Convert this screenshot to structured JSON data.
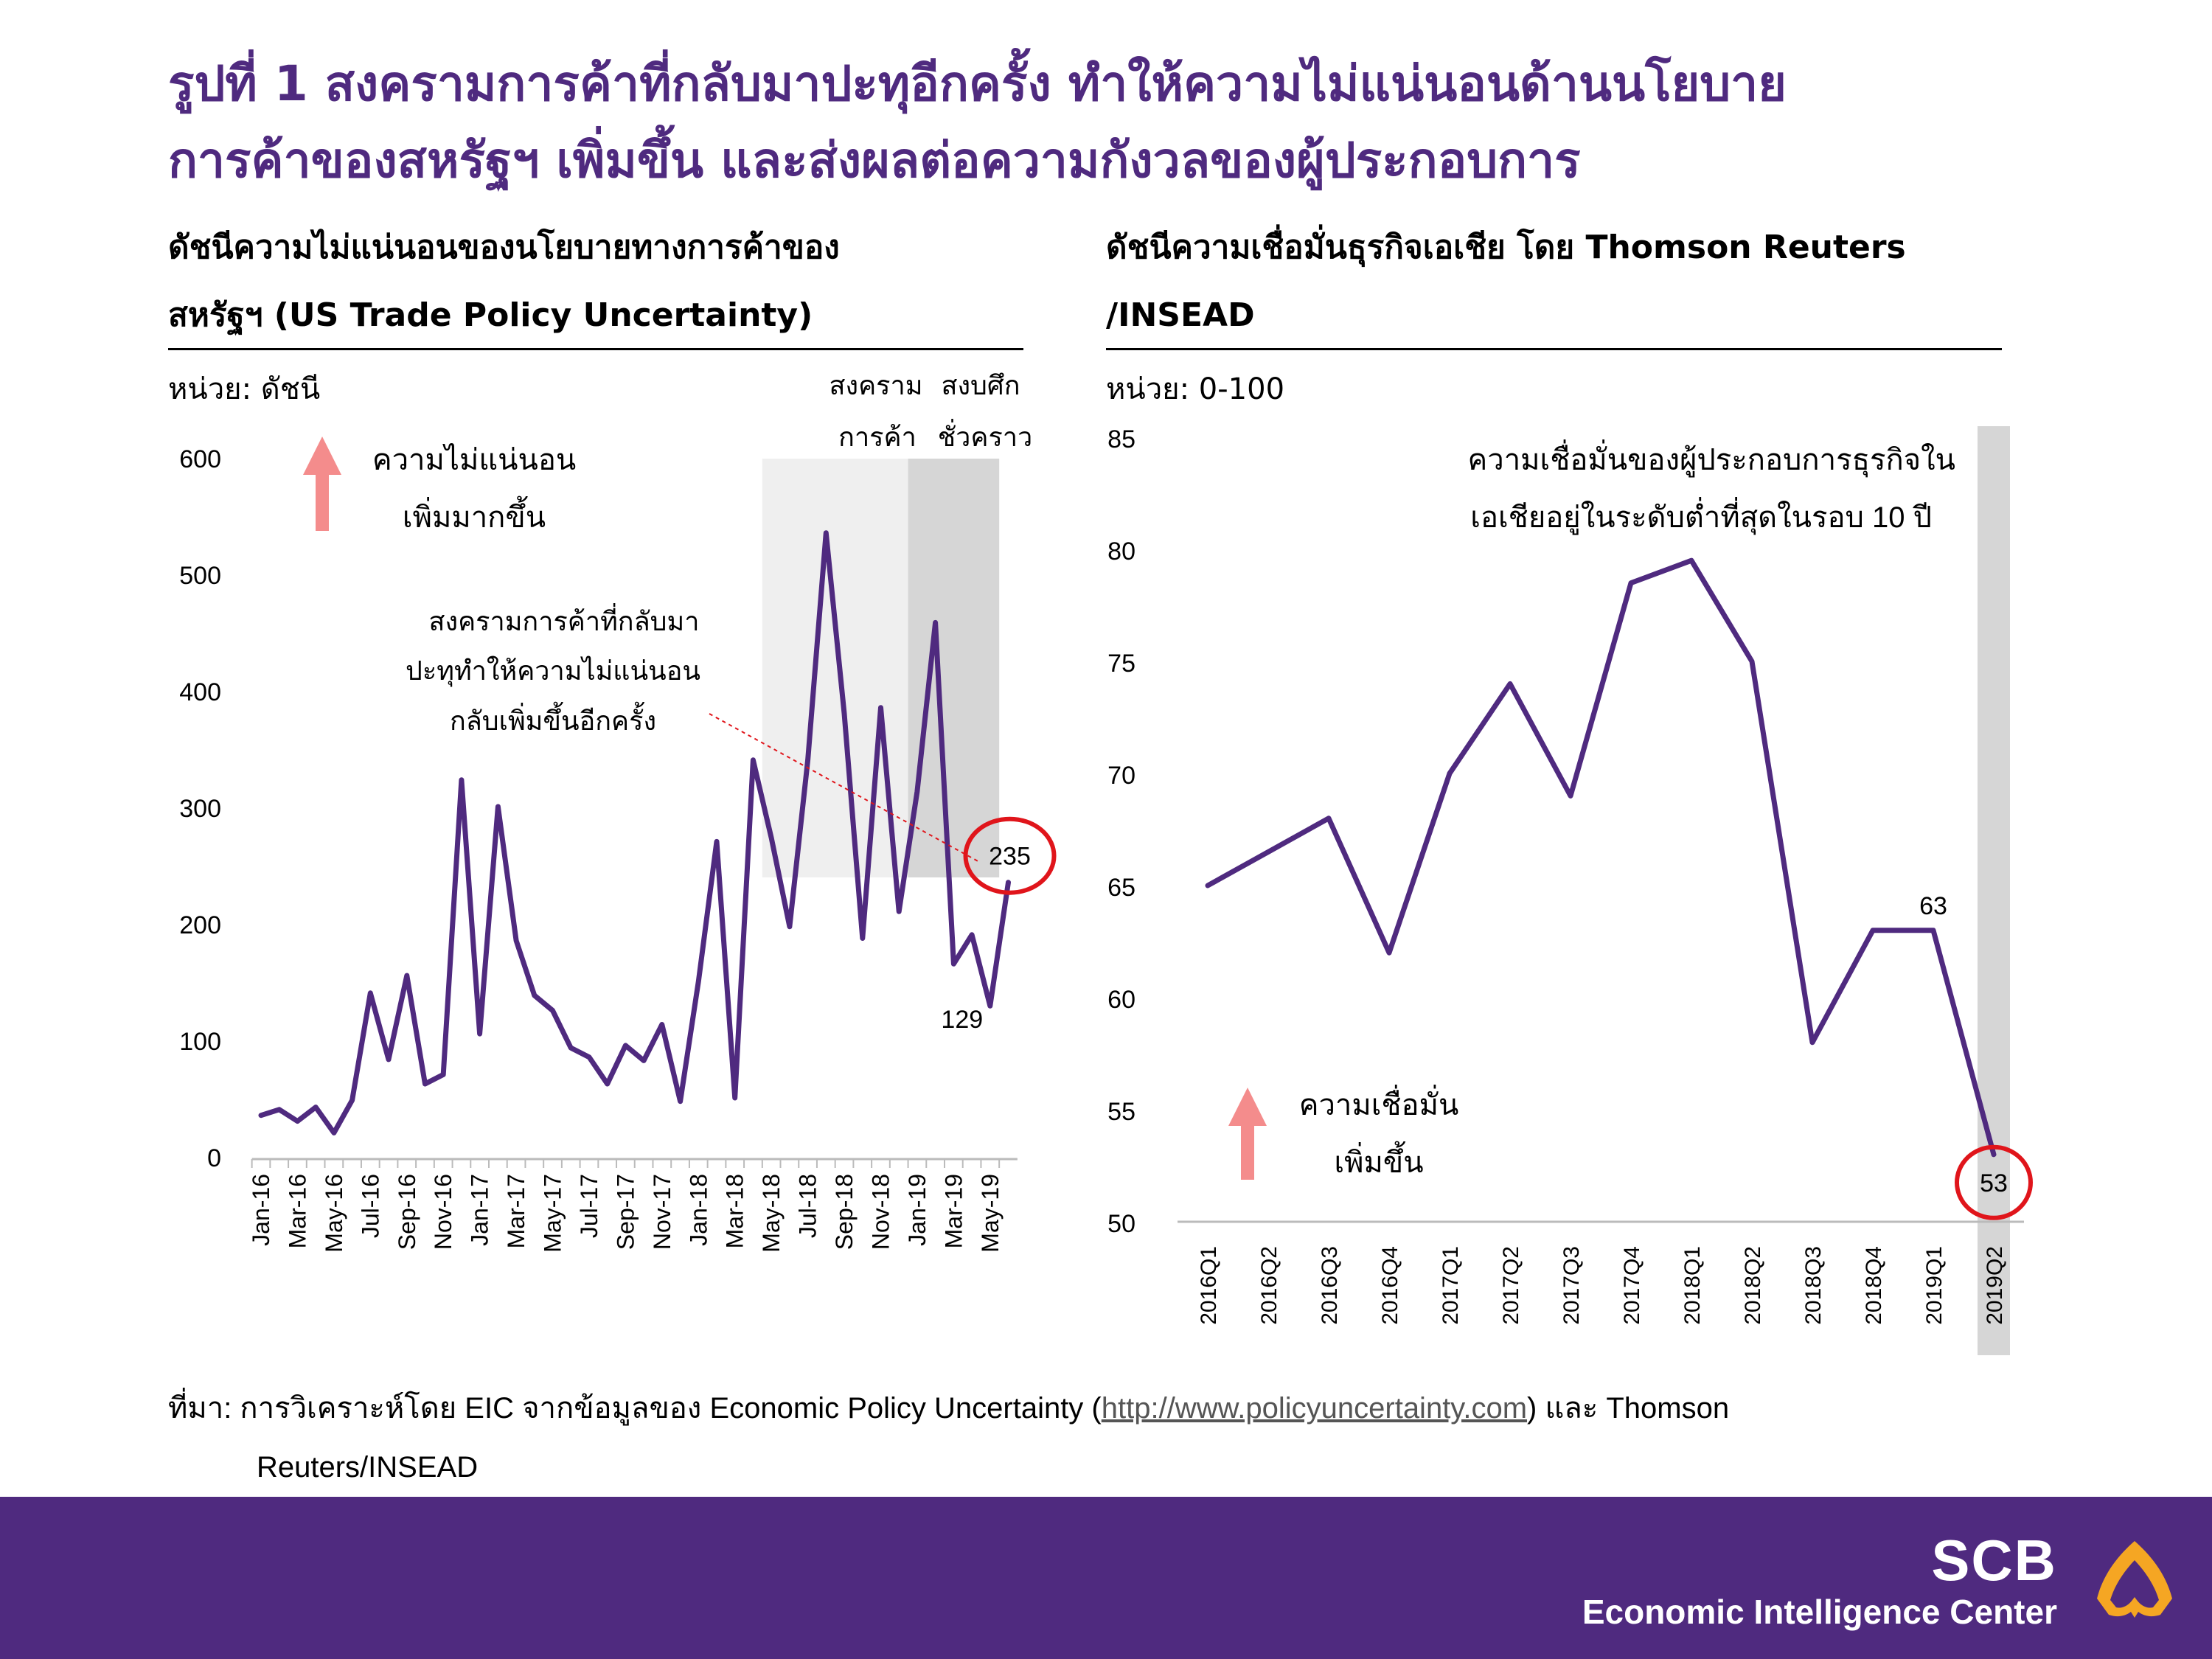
{
  "figure": {
    "title_line1": "รูปที่ 1 สงครามการค้าที่กลับมาปะทุอีกครั้ง ทำให้ความไม่แน่นอนด้านนโยบาย",
    "title_line2": "การค้าของสหรัฐฯ เพิ่มขึ้น และส่งผลต่อความกังวลของผู้ประกอบการ"
  },
  "left": {
    "subtitle_line1": "ดัชนีความไม่แน่นอนของนโยบายทางการค้าของ",
    "subtitle_line2": "สหรัฐฯ (US Trade Policy Uncertainty)",
    "unit": "หน่วย: ดัชนี"
  },
  "right": {
    "subtitle_line1": "ดัชนีความเชื่อมั่นธุรกิจเอเชีย โดย Thomson Reuters",
    "subtitle_line2": "/INSEAD",
    "unit": "หน่วย: 0-100"
  },
  "colors": {
    "line": "#4f2a7f",
    "title": "#4f2a7f",
    "highlight": "#e0151b",
    "arrow": "#f48c8c",
    "shade_light": "#efefef",
    "shade_dark": "#d6d6d6",
    "footer": "#4f2a7f",
    "logo": "#f5a623"
  },
  "chart_data": [
    {
      "type": "line",
      "title": "ดัชนีความไม่แน่นอนของนโยบายทางการค้าของสหรัฐฯ (US Trade Policy Uncertainty)",
      "ylabel": "หน่วย: ดัชนี",
      "ylim": [
        0,
        600
      ],
      "yticks": [
        "600",
        "500",
        "400",
        "300",
        "200",
        "100",
        "0"
      ],
      "xtick_labels": [
        "Jan-16",
        "Mar-16",
        "May-16",
        "Jul-16",
        "Sep-16",
        "Nov-16",
        "Jan-17",
        "Mar-17",
        "May-17",
        "Jul-17",
        "Sep-17",
        "Nov-17",
        "Jan-18",
        "Mar-18",
        "May-18",
        "Jul-18",
        "Sep-18",
        "Nov-18",
        "Jan-19",
        "Mar-19",
        "May-19"
      ],
      "x": [
        "Jan-16",
        "Feb-16",
        "Mar-16",
        "Apr-16",
        "May-16",
        "Jun-16",
        "Jul-16",
        "Aug-16",
        "Sep-16",
        "Oct-16",
        "Nov-16",
        "Dec-16",
        "Jan-17",
        "Feb-17",
        "Mar-17",
        "Apr-17",
        "May-17",
        "Jun-17",
        "Jul-17",
        "Aug-17",
        "Sep-17",
        "Oct-17",
        "Nov-17",
        "Dec-17",
        "Jan-18",
        "Feb-18",
        "Mar-18",
        "Apr-18",
        "May-18",
        "Jun-18",
        "Jul-18",
        "Aug-18",
        "Sep-18",
        "Oct-18",
        "Nov-18",
        "Dec-18",
        "Jan-19",
        "Feb-19",
        "Mar-19",
        "Apr-19",
        "May-19",
        "Jun-19"
      ],
      "values": [
        35,
        40,
        30,
        42,
        20,
        48,
        140,
        83,
        155,
        62,
        70,
        323,
        105,
        300,
        185,
        138,
        125,
        93,
        85,
        62,
        95,
        82,
        113,
        47,
        150,
        270,
        50,
        340,
        273,
        197,
        340,
        535,
        380,
        187,
        385,
        210,
        313,
        458,
        165,
        190,
        129,
        235
      ],
      "value_labels": [
        {
          "index": 40,
          "text": "129"
        },
        {
          "index": 41,
          "text": "235",
          "highlighted": true
        }
      ],
      "shaded_regions": [
        {
          "from": "May-18",
          "to": "Dec-18",
          "label_line1": "สงคราม",
          "label_line2": "การค้า",
          "tone": "light"
        },
        {
          "from": "Jan-19",
          "to": "May-19",
          "label_line1": "สงบศึก",
          "label_line2": "ชั่วคราว",
          "tone": "dark"
        }
      ],
      "annotations": {
        "arrow_line1": "ความไม่แน่นอน",
        "arrow_line2": "เพิ่มมากขึ้น",
        "note_line1": "สงครามการค้าที่กลับมา",
        "note_line2": "ปะทุทำให้ความไม่แน่นอน",
        "note_line3": "กลับเพิ่มขึ้นอีกครั้ง"
      }
    },
    {
      "type": "line",
      "title": "ดัชนีความเชื่อมั่นธุรกิจเอเชีย โดย Thomson Reuters/INSEAD",
      "ylabel": "หน่วย: 0-100",
      "ylim": [
        50,
        85
      ],
      "yticks": [
        "85",
        "80",
        "75",
        "70",
        "65",
        "60",
        "55",
        "50"
      ],
      "categories": [
        "2016Q1",
        "2016Q2",
        "2016Q3",
        "2016Q4",
        "2017Q1",
        "2017Q2",
        "2017Q3",
        "2017Q4",
        "2018Q1",
        "2018Q2",
        "2018Q3",
        "2018Q4",
        "2019Q1",
        "2019Q2"
      ],
      "values": [
        65,
        66.5,
        68,
        62,
        70,
        74,
        69,
        78.5,
        79.5,
        75,
        58,
        63,
        63,
        53
      ],
      "value_labels": [
        {
          "index": 12,
          "text": "63"
        },
        {
          "index": 13,
          "text": "53",
          "highlighted": true
        }
      ],
      "shaded_regions": [
        {
          "from": "2019Q2",
          "to": "2019Q2",
          "tone": "dark"
        }
      ],
      "annotations": {
        "note_line1": "ความเชื่อมั่นของผู้ประกอบการธุรกิจใน",
        "note_line2": "เอเชียอยู่ในระดับต่ำที่สุดในรอบ 10 ปี",
        "arrow_line1": "ความเชื่อมั่น",
        "arrow_line2": "เพิ่มขึ้น"
      }
    }
  ],
  "source": {
    "prefix": "ที่มา: การวิเคราะห์โดย EIC จากข้อมูลของ Economic Policy Uncertainty (",
    "link": "http://www.policyuncertainty.com",
    "suffix": ") และ Thomson",
    "line2": "Reuters/INSEAD"
  },
  "footer": {
    "brand": "SCB",
    "tagline": "Economic Intelligence Center"
  }
}
